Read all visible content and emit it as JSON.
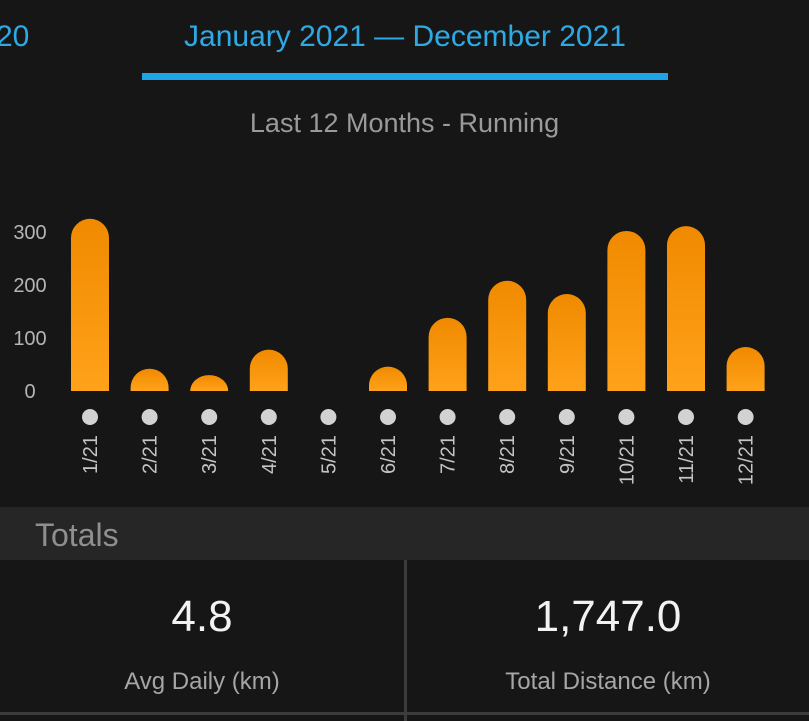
{
  "header": {
    "previous_period_label": "20",
    "current_period_label": "January 2021 — December 2021"
  },
  "chart_data": {
    "type": "bar",
    "title": "Last 12 Months - Running",
    "xlabel": "",
    "ylabel": "",
    "categories": [
      "1/21",
      "2/21",
      "3/21",
      "4/21",
      "5/21",
      "6/21",
      "7/21",
      "8/21",
      "9/21",
      "10/21",
      "11/21",
      "12/21"
    ],
    "values": [
      325,
      42,
      30,
      78,
      0,
      46,
      138,
      208,
      183,
      302,
      311,
      83
    ],
    "ylim": [
      0,
      330
    ],
    "yticks": [
      0,
      100,
      200,
      300
    ],
    "grid": false,
    "legend": "none",
    "bar_color_top": "#f08a00",
    "bar_color_bottom": "#ffa21a",
    "marker_color": "#d2d2d2"
  },
  "totals": {
    "header_label": "Totals",
    "avg_daily_value": "4.8",
    "avg_daily_label": "Avg Daily (km)",
    "total_distance_value": "1,747.0",
    "total_distance_label": "Total Distance (km)"
  }
}
